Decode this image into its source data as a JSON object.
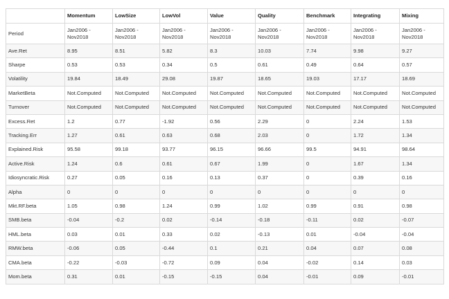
{
  "table": {
    "corner": "",
    "columns": [
      "Momentum",
      "LowSize",
      "LowVol",
      "Value",
      "Quality",
      "Benchmark",
      "Integrating",
      "Mixing"
    ],
    "period": {
      "label": "Period",
      "values": [
        [
          "Jan2006 -",
          "Nov2018"
        ],
        [
          "Jan2006 -",
          "Nov2018"
        ],
        [
          "Jan2006 -",
          "Nov2018"
        ],
        [
          "Jan2006 -",
          "Nov2018"
        ],
        [
          "Jan2006 -",
          "Nov2018"
        ],
        [
          "Jan2006 -",
          "Nov2018"
        ],
        [
          "Jan2006 -",
          "Nov2018"
        ],
        [
          "Jan2006 -",
          "Nov2018"
        ]
      ]
    },
    "rows": [
      {
        "label": "Ave.Ret",
        "values": [
          "8.95",
          "8.51",
          "5.82",
          "8.3",
          "10.03",
          "7.74",
          "9.98",
          "9.27"
        ]
      },
      {
        "label": "Sharpe",
        "values": [
          "0.53",
          "0.53",
          "0.34",
          "0.5",
          "0.61",
          "0.49",
          "0.64",
          "0.57"
        ]
      },
      {
        "label": "Volatility",
        "values": [
          "19.84",
          "18.49",
          "29.08",
          "19.87",
          "18.65",
          "19.03",
          "17.17",
          "18.69"
        ]
      },
      {
        "label": "MarketBeta",
        "values": [
          "Not.Computed",
          "Not.Computed",
          "Not.Computed",
          "Not.Computed",
          "Not.Computed",
          "Not.Computed",
          "Not.Computed",
          "Not.Computed"
        ]
      },
      {
        "label": "Turnover",
        "values": [
          "Not.Computed",
          "Not.Computed",
          "Not.Computed",
          "Not.Computed",
          "Not.Computed",
          "Not.Computed",
          "Not.Computed",
          "Not.Computed"
        ]
      },
      {
        "label": "Excess.Ret",
        "values": [
          "1.2",
          "0.77",
          "-1.92",
          "0.56",
          "2.29",
          "0",
          "2.24",
          "1.53"
        ]
      },
      {
        "label": "Tracking.Err",
        "values": [
          "1.27",
          "0.61",
          "0.63",
          "0.68",
          "2.03",
          "0",
          "1.72",
          "1.34"
        ]
      },
      {
        "label": "Explained.Risk",
        "values": [
          "95.58",
          "99.18",
          "93.77",
          "96.15",
          "96.66",
          "99.5",
          "94.91",
          "98.64"
        ]
      },
      {
        "label": "Active.Risk",
        "values": [
          "1.24",
          "0.6",
          "0.61",
          "0.67",
          "1.99",
          "0",
          "1.67",
          "1.34"
        ]
      },
      {
        "label": "Idiosyncratic.Risk",
        "values": [
          "0.27",
          "0.05",
          "0.16",
          "0.13",
          "0.37",
          "0",
          "0.39",
          "0.16"
        ]
      },
      {
        "label": "Alpha",
        "values": [
          "0",
          "0",
          "0",
          "0",
          "0",
          "0",
          "0",
          "0"
        ]
      },
      {
        "label": "Mkt.RF.beta",
        "values": [
          "1.05",
          "0.98",
          "1.24",
          "0.99",
          "1.02",
          "0.99",
          "0.91",
          "0.98"
        ]
      },
      {
        "label": "SMB.beta",
        "values": [
          "-0.04",
          "-0.2",
          "0.02",
          "-0.14",
          "-0.18",
          "-0.11",
          "0.02",
          "-0.07"
        ]
      },
      {
        "label": "HML.beta",
        "values": [
          "0.03",
          "0.01",
          "0.33",
          "0.02",
          "-0.13",
          "0.01",
          "-0.04",
          "-0.04"
        ]
      },
      {
        "label": "RMW.beta",
        "values": [
          "-0.06",
          "0.05",
          "-0.44",
          "0.1",
          "0.21",
          "0.04",
          "0.07",
          "0.08"
        ]
      },
      {
        "label": "CMA.beta",
        "values": [
          "-0.22",
          "-0.03",
          "-0.72",
          "0.09",
          "0.04",
          "-0.02",
          "0.14",
          "0.03"
        ]
      },
      {
        "label": "Mom.beta",
        "values": [
          "0.31",
          "0.01",
          "-0.15",
          "-0.15",
          "0.04",
          "-0.01",
          "0.09",
          "-0.01"
        ]
      }
    ]
  }
}
